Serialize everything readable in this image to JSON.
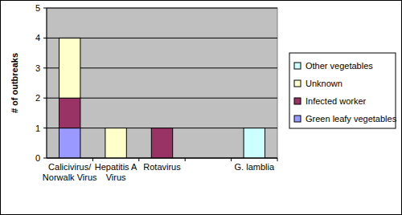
{
  "chart_data": {
    "type": "bar",
    "stacked": true,
    "grid": true,
    "legend": "right",
    "y_label": "# of outbreaks",
    "categories": [
      "Calicivirus/ Norwalk Virus",
      "Hepatitis A Virus",
      "Rotavirus",
      null,
      "G. lamblia"
    ],
    "series": [
      {
        "name": "Green leafy vegetables",
        "color": "#9999ff",
        "values": [
          1,
          0,
          0,
          0,
          0
        ]
      },
      {
        "name": "Infected worker",
        "color": "#993366",
        "values": [
          1,
          0,
          1,
          0,
          0
        ]
      },
      {
        "name": "Unknown",
        "color": "#ffffcc",
        "values": [
          2,
          1,
          0,
          0,
          0
        ]
      },
      {
        "name": "Other vegetables",
        "color": "#ccffff",
        "values": [
          0,
          0,
          0,
          0,
          1
        ]
      }
    ],
    "ylim": [
      0,
      5
    ],
    "yticks": [
      0,
      1,
      2,
      3,
      4,
      5
    ]
  }
}
